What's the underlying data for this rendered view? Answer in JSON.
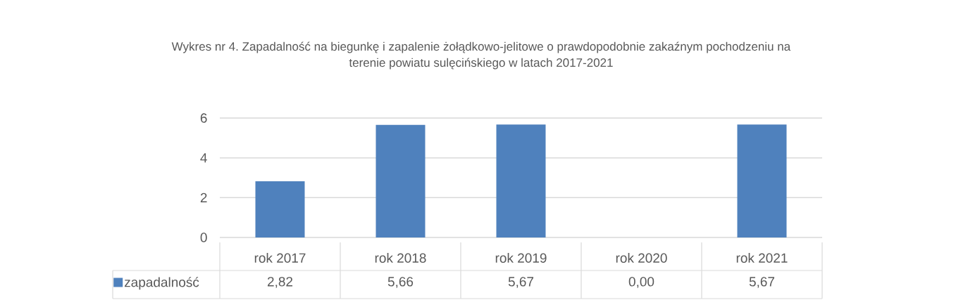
{
  "chart_data": {
    "type": "bar",
    "title": "Wykres nr 4. Zapadalność na biegunkę i zapalenie żołądkowo-jelitowe o prawdopodobnie zakaźnym pochodzeniu na terenie powiatu sulęcińskiego w latach 2017-2021",
    "categories": [
      "rok 2017",
      "rok 2018",
      "rok 2019",
      "rok 2020",
      "rok 2021"
    ],
    "series": [
      {
        "name": "zapadalność",
        "color": "#4f81bd",
        "values": [
          2.82,
          5.66,
          5.67,
          0,
          5.67
        ],
        "value_labels": [
          "2,82",
          "5,66",
          "5,67",
          "0,00",
          "5,67"
        ]
      }
    ],
    "ylim": [
      0,
      6
    ],
    "yticks": [
      0,
      2,
      4,
      6
    ],
    "grid": "y",
    "legend": "bottom"
  }
}
